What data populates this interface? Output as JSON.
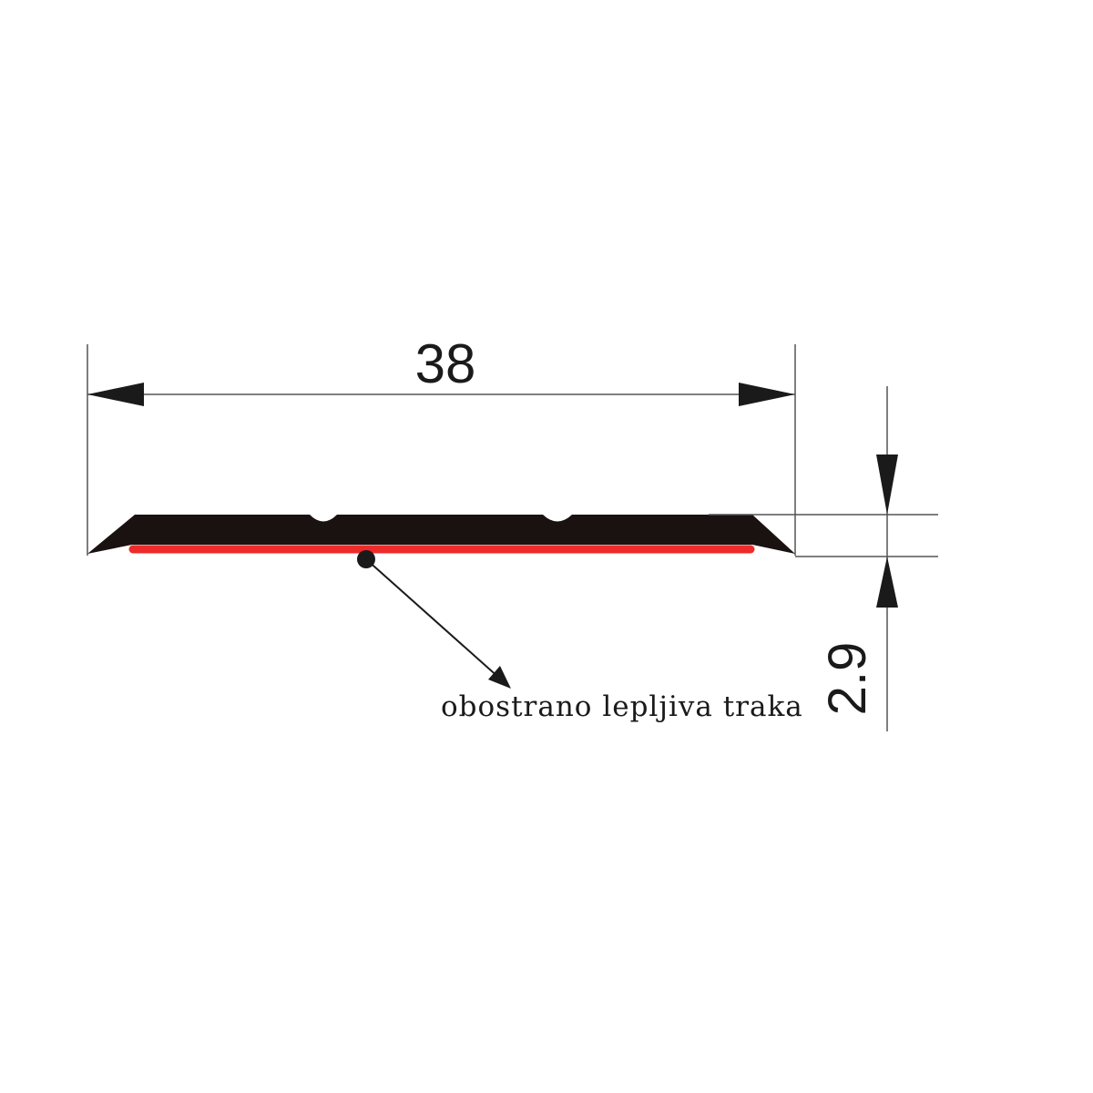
{
  "dimensions": {
    "width_label": "38",
    "thickness_label": "2.9"
  },
  "callout": {
    "label": "obostrano lepljiva traka"
  },
  "colors": {
    "profile": "#1a1210",
    "adhesive_tape": "#ee2b2b",
    "dimension_lines": "#555555",
    "background": "#ffffff"
  }
}
